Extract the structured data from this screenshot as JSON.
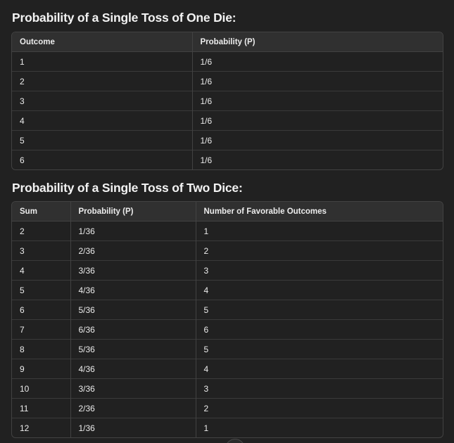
{
  "section1": {
    "title": "Probability of a Single Toss of One Die:",
    "columns": [
      "Outcome",
      "Probability (P)"
    ],
    "rows": [
      [
        "1",
        "1/6"
      ],
      [
        "2",
        "1/6"
      ],
      [
        "3",
        "1/6"
      ],
      [
        "4",
        "1/6"
      ],
      [
        "5",
        "1/6"
      ],
      [
        "6",
        "1/6"
      ]
    ]
  },
  "section2": {
    "title": "Probability of a Single Toss of Two Dice:",
    "columns": [
      "Sum",
      "Probability (P)",
      "Number of Favorable Outcomes"
    ],
    "rows": [
      [
        "2",
        "1/36",
        "1"
      ],
      [
        "3",
        "2/36",
        "2"
      ],
      [
        "4",
        "3/36",
        "3"
      ],
      [
        "5",
        "4/36",
        "4"
      ],
      [
        "6",
        "5/36",
        "5"
      ],
      [
        "7",
        "6/36",
        "6"
      ],
      [
        "8",
        "5/36",
        "5"
      ],
      [
        "9",
        "4/36",
        "4"
      ],
      [
        "10",
        "3/36",
        "3"
      ],
      [
        "11",
        "2/36",
        "2"
      ],
      [
        "12",
        "1/36",
        "1"
      ]
    ]
  },
  "colors": {
    "background": "#212121",
    "header_row": "#303030",
    "border": "#424242",
    "text": "#ececec"
  }
}
